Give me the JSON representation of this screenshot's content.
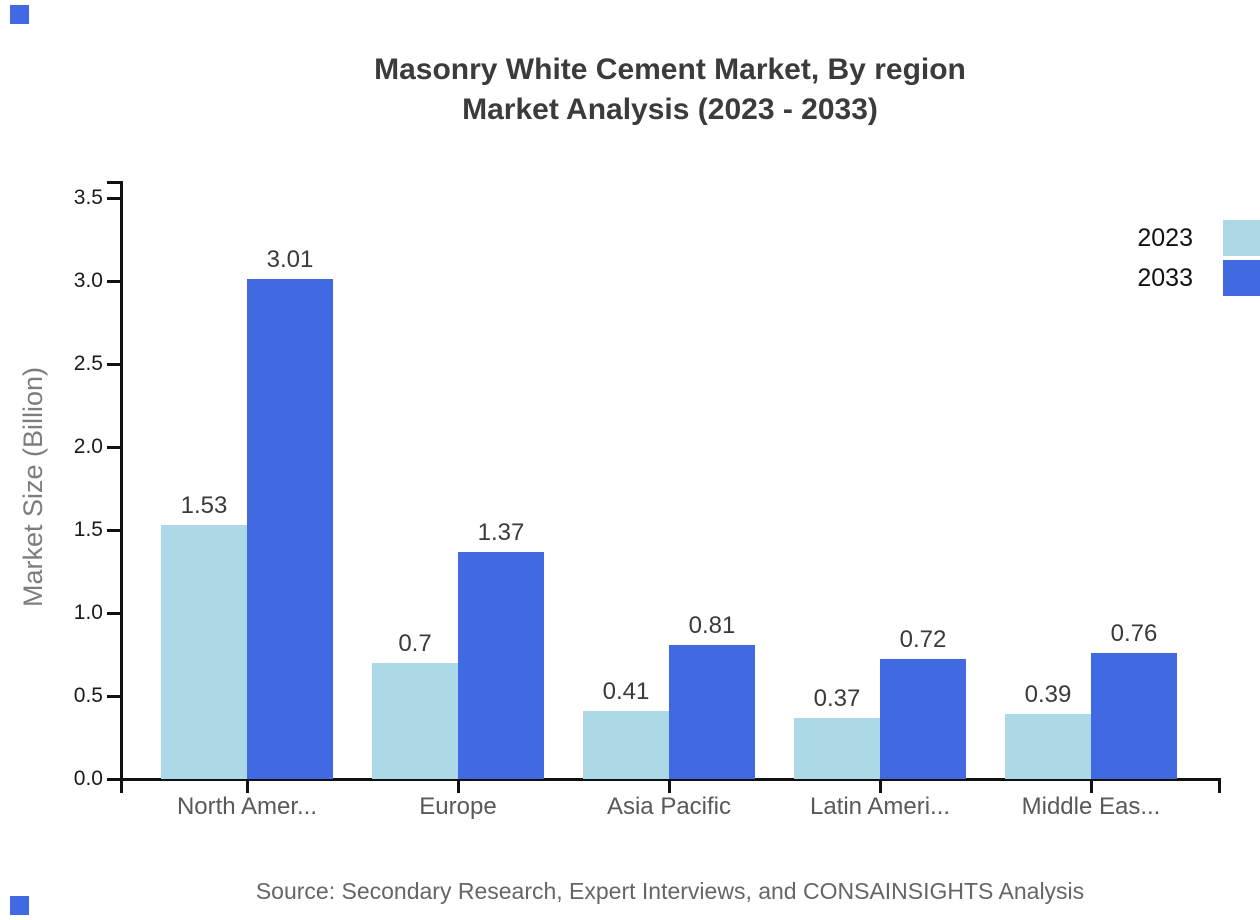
{
  "title": {
    "line1": "Masonry White Cement Market, By region",
    "line2": "Market Analysis (2023 - 2033)"
  },
  "source_note": "Source: Secondary Research, Expert Interviews, and CONSAINSIGHTS Analysis",
  "colors": {
    "series_2023": "#ADD8E6",
    "series_2033": "#4169E1",
    "axis_line": "#111111",
    "title_text": "#3B3B3B",
    "value_label_text": "#3A3A3A",
    "category_label_text": "#595959",
    "y_tick_label_text": "#1A1A1A",
    "y_axis_title_text": "#7D7D7D",
    "source_text": "#666666",
    "brand_square": "#4169E1"
  },
  "chart_data": {
    "type": "bar",
    "title": "Masonry White Cement Market, By region Market Analysis (2023 - 2033)",
    "categories": [
      "North Amer...",
      "Europe",
      "Asia Pacific",
      "Latin Ameri...",
      "Middle Eas..."
    ],
    "series": [
      {
        "name": "2023",
        "color": "#ADD8E6",
        "values": [
          1.53,
          0.7,
          0.41,
          0.37,
          0.39
        ]
      },
      {
        "name": "2033",
        "color": "#4169E1",
        "values": [
          3.01,
          1.37,
          0.81,
          0.72,
          0.76
        ]
      }
    ],
    "xlabel": "",
    "ylabel": "Market Size (Billion)",
    "ylim": [
      0,
      3.6
    ],
    "yticks": [
      "0.0",
      "0.5",
      "1.0",
      "1.5",
      "2.0",
      "2.5",
      "3.0",
      "3.5"
    ],
    "grid": false,
    "legend_position": "top-right"
  }
}
